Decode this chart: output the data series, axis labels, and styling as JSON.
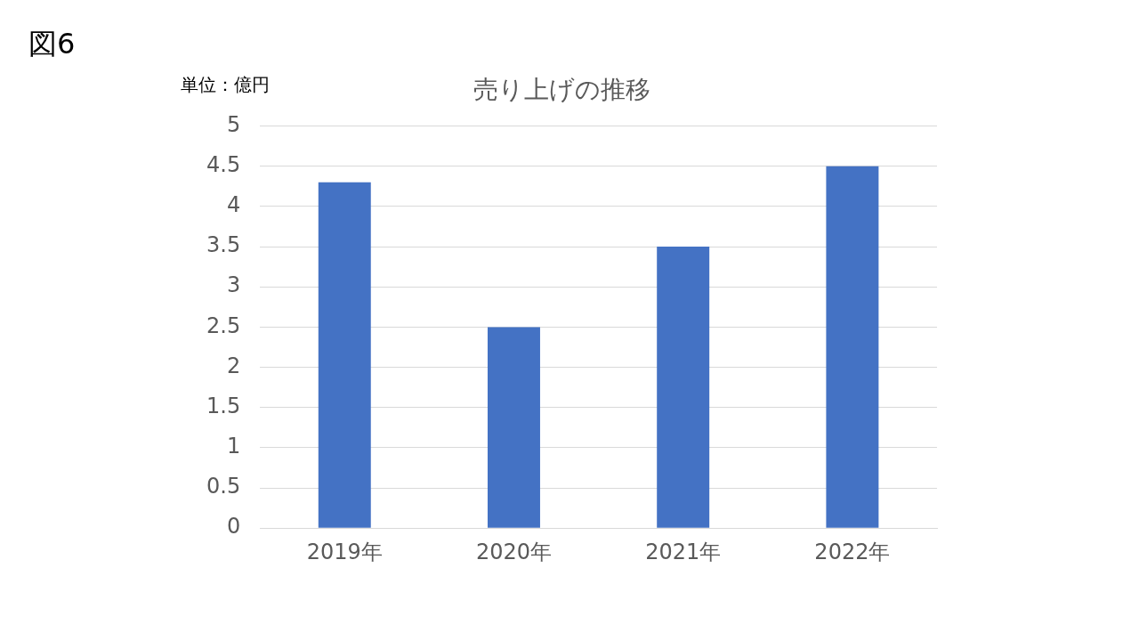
{
  "chart_data": {
    "type": "bar",
    "title": "売り上げの推移",
    "ylabel": "単位：億円",
    "annotations": [
      "図6"
    ],
    "categories": [
      "2019年",
      "2020年",
      "2021年",
      "2022年"
    ],
    "values": [
      4.3,
      2.5,
      3.5,
      4.5
    ],
    "color": "#4472c4",
    "ylim": [
      0,
      5
    ],
    "yticks": [
      0,
      0.5,
      1,
      1.5,
      2,
      2.5,
      3,
      3.5,
      4,
      4.5,
      5
    ],
    "grid": "y",
    "legend": false
  }
}
